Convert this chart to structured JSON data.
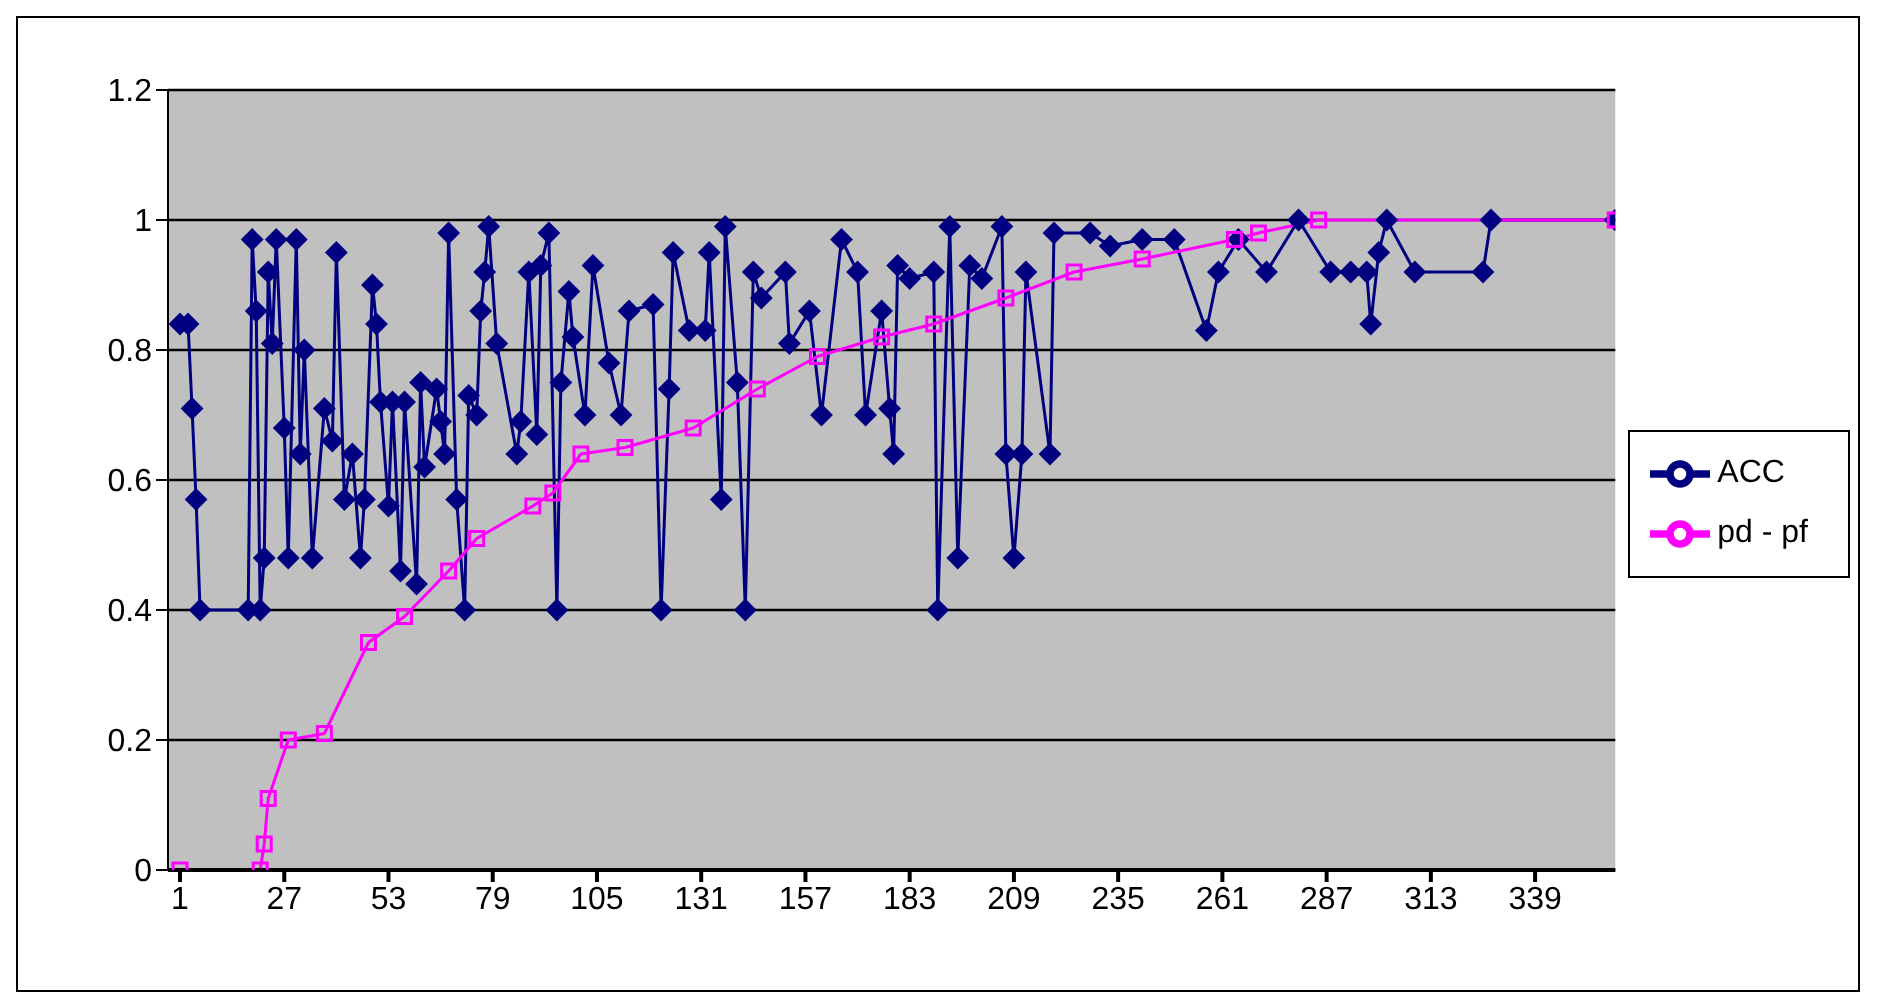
{
  "chart_data": {
    "type": "line",
    "xlim": [
      -2,
      359
    ],
    "xticks": [
      1,
      27,
      53,
      79,
      105,
      131,
      157,
      183,
      209,
      235,
      261,
      287,
      313,
      339
    ],
    "ylim": [
      0,
      1.2
    ],
    "yticks": [
      0,
      0.2,
      0.4,
      0.6,
      0.8,
      1,
      1.2
    ],
    "grid": "y",
    "legend": "right",
    "line_style": "solid",
    "series": [
      {
        "name": "ACC",
        "color": "#000080",
        "marker": "diamond",
        "x": [
          1,
          3,
          4,
          5,
          6,
          18,
          19,
          20,
          21,
          22,
          23,
          24,
          25,
          27,
          28,
          30,
          31,
          32,
          34,
          37,
          39,
          40,
          42,
          44,
          46,
          47,
          49,
          50,
          51,
          53,
          54,
          56,
          57,
          60,
          61,
          62,
          65,
          66,
          67,
          68,
          70,
          72,
          73,
          75,
          76,
          77,
          78,
          80,
          85,
          86,
          88,
          90,
          91,
          93,
          95,
          96,
          98,
          99,
          102,
          104,
          108,
          111,
          113,
          119,
          121,
          123,
          124,
          128,
          132,
          133,
          136,
          137,
          140,
          142,
          144,
          146,
          152,
          153,
          158,
          161,
          166,
          170,
          172,
          176,
          178,
          179,
          180,
          183,
          189,
          190,
          193,
          195,
          198,
          201,
          206,
          207,
          209,
          211,
          212,
          218,
          219,
          228,
          233,
          241,
          249,
          257,
          260,
          265,
          272,
          280,
          288,
          293,
          297,
          298,
          300,
          302,
          309,
          326,
          328,
          359
        ],
        "values": [
          0.84,
          0.84,
          0.71,
          0.57,
          0.4,
          0.4,
          0.97,
          0.86,
          0.4,
          0.48,
          0.92,
          0.81,
          0.97,
          0.68,
          0.48,
          0.97,
          0.64,
          0.8,
          0.48,
          0.71,
          0.66,
          0.95,
          0.57,
          0.64,
          0.48,
          0.57,
          0.9,
          0.84,
          0.72,
          0.56,
          0.72,
          0.46,
          0.72,
          0.44,
          0.75,
          0.62,
          0.74,
          0.69,
          0.64,
          0.98,
          0.57,
          0.4,
          0.73,
          0.7,
          0.86,
          0.92,
          0.99,
          0.81,
          0.64,
          0.69,
          0.92,
          0.67,
          0.93,
          0.98,
          0.4,
          0.75,
          0.89,
          0.82,
          0.7,
          0.93,
          0.78,
          0.7,
          0.86,
          0.87,
          0.4,
          0.74,
          0.95,
          0.83,
          0.83,
          0.95,
          0.57,
          0.99,
          0.75,
          0.4,
          0.92,
          0.88,
          0.92,
          0.81,
          0.86,
          0.7,
          0.97,
          0.92,
          0.7,
          0.86,
          0.71,
          0.64,
          0.93,
          0.91,
          0.92,
          0.4,
          0.99,
          0.48,
          0.93,
          0.91,
          0.99,
          0.64,
          0.48,
          0.64,
          0.92,
          0.64,
          0.98,
          0.98,
          0.96,
          0.97,
          0.97,
          0.83,
          0.92,
          0.97,
          0.92,
          1,
          0.92,
          0.92,
          0.92,
          0.84,
          0.95,
          1,
          0.92,
          0.92,
          1,
          1
        ]
      },
      {
        "name": "pd - pf",
        "color": "#ff00ff",
        "marker": "square",
        "x": [
          1,
          21,
          22,
          23,
          28,
          37,
          48,
          57,
          68,
          75,
          89,
          94,
          101,
          112,
          129,
          145,
          160,
          176,
          189,
          207,
          224,
          241,
          264,
          270,
          285,
          359
        ],
        "values": [
          0,
          0,
          0.04,
          0.11,
          0.2,
          0.21,
          0.35,
          0.39,
          0.46,
          0.51,
          0.56,
          0.58,
          0.64,
          0.65,
          0.68,
          0.74,
          0.79,
          0.82,
          0.84,
          0.88,
          0.92,
          0.94,
          0.97,
          0.98,
          1,
          1
        ]
      }
    ]
  }
}
